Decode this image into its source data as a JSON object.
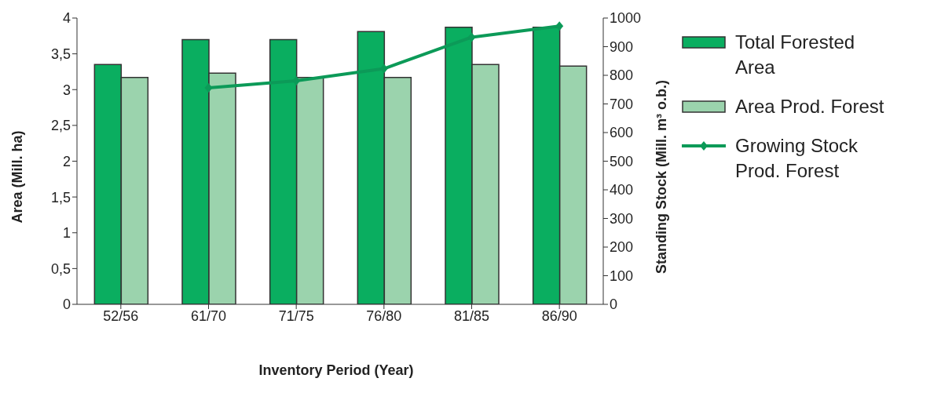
{
  "chart_data": {
    "type": "bar",
    "xlabel": "Inventory Period (Year)",
    "ylabel": "Area (Mill. ha)",
    "y2label": "Standing Stock (Mill. m³ o.b.)",
    "categories": [
      "52/56",
      "61/70",
      "71/75",
      "76/80",
      "81/85",
      "86/90"
    ],
    "series": [
      {
        "name": "Total Forested Area",
        "color": "#0aae60",
        "values": [
          3.35,
          3.7,
          3.7,
          3.81,
          3.87,
          3.87
        ]
      },
      {
        "name": "Area Prod. Forest",
        "color": "#9bd3ad",
        "values": [
          3.17,
          3.23,
          3.17,
          3.17,
          3.35,
          3.33
        ]
      },
      {
        "name": "Growing  Stock Prod.  Forest",
        "type": "line",
        "axis": "y2",
        "color": "#0c9a58",
        "marker": "diamond",
        "values": [
          null,
          756,
          781,
          823,
          933,
          972
        ]
      }
    ],
    "ylim": [
      0,
      4
    ],
    "yticks": [
      0,
      {
        "value": 0.5,
        "label": "0,5"
      },
      1,
      {
        "value": 1.5,
        "label": "1,5"
      },
      2,
      {
        "value": 2.5,
        "label": "2,5"
      },
      3,
      {
        "value": 3.5,
        "label": "3,5"
      },
      4
    ],
    "y2lim": [
      0,
      1000
    ],
    "y2ticks": [
      0,
      100,
      200,
      300,
      400,
      500,
      600,
      700,
      800,
      900,
      1000
    ],
    "grid": false,
    "legend": "right"
  }
}
